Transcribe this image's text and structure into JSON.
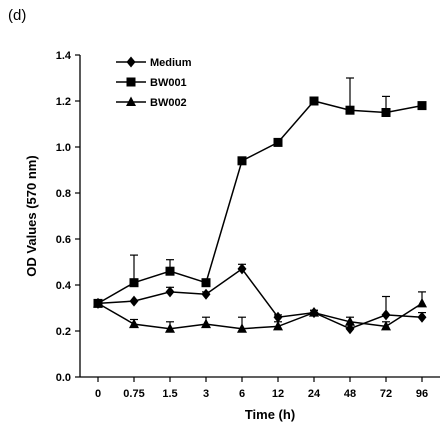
{
  "panel_label": "(d)",
  "chart_data": {
    "type": "line",
    "xlabel": "Time (h)",
    "ylabel": "OD Values (570 nm)",
    "categories": [
      "0",
      "0.75",
      "1.5",
      "3",
      "6",
      "12",
      "24",
      "48",
      "72",
      "96"
    ],
    "ylim": [
      0,
      1.4
    ],
    "yticks": [
      "0.0",
      "0.2",
      "0.4",
      "0.6",
      "0.8",
      "1.0",
      "1.2",
      "1.4"
    ],
    "grid": false,
    "legend_position": "top-left",
    "series": [
      {
        "name": "Medium",
        "marker": "diamond",
        "values": [
          0.32,
          0.33,
          0.37,
          0.36,
          0.47,
          0.26,
          0.28,
          0.21,
          0.27,
          0.26
        ],
        "errors": [
          0,
          0,
          0.02,
          0.01,
          0.02,
          0.01,
          0.01,
          0.02,
          0.08,
          0.02
        ]
      },
      {
        "name": "BW001",
        "marker": "square",
        "values": [
          0.32,
          0.41,
          0.46,
          0.41,
          0.94,
          1.02,
          1.2,
          1.16,
          1.15,
          1.18
        ],
        "errors": [
          0,
          0.12,
          0.05,
          0.01,
          0.01,
          0.01,
          0.01,
          0.14,
          0.07,
          0.01
        ]
      },
      {
        "name": "BW002",
        "marker": "triangle",
        "values": [
          0.32,
          0.23,
          0.21,
          0.23,
          0.21,
          0.22,
          0.28,
          0.24,
          0.22,
          0.32
        ],
        "errors": [
          0,
          0.02,
          0.03,
          0.03,
          0.05,
          0.02,
          0.01,
          0.02,
          0.02,
          0.05
        ]
      }
    ]
  }
}
